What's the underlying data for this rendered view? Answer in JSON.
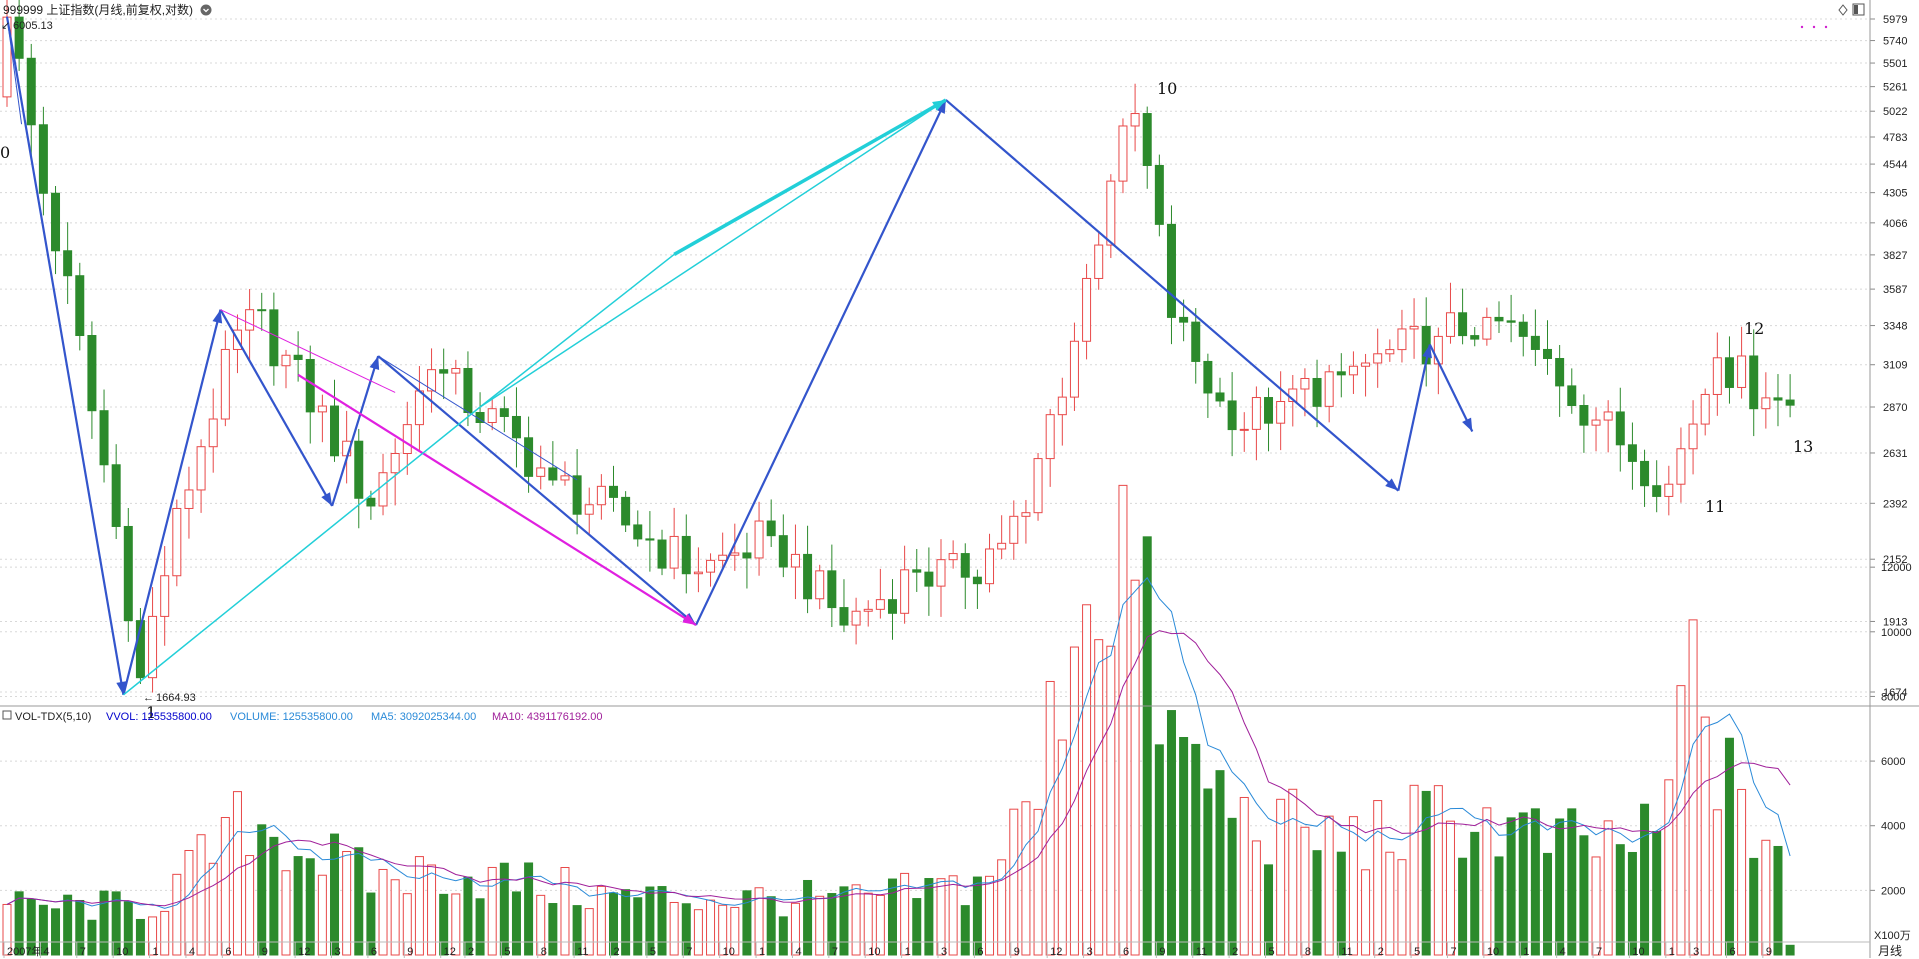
{
  "header": {
    "title": "999999 上证指数(月线,前复权,对数)",
    "max_label": "6005.13",
    "min_label": "1664.93"
  },
  "volume_header": {
    "indicator": "VOL-TDX(5,10)",
    "vvol": "VVOL: 125535800.00",
    "volume": "VOLUME: 125535800.00",
    "ma5": "MA5: 3092025344.00",
    "ma10": "MA10: 4391176192.00"
  },
  "period_label": "月线",
  "volume_unit": "X100万",
  "colors": {
    "up": "#e84848",
    "down": "#2c8a2c",
    "wave_blue": "#3355cc",
    "cyan": "#22cfd8",
    "magenta": "#e020e0",
    "ma5": "#2a8ad8",
    "ma10": "#a0209a",
    "vvol": "#0000cc",
    "volume": "#2a8ad8",
    "ma10_text": "#a0209a"
  },
  "chart_data": {
    "type": "candlestick",
    "price_axis": {
      "scale": "log",
      "ticks": [
        1674,
        1913,
        2152,
        2392,
        2631,
        2870,
        3109,
        3348,
        3587,
        3827,
        4066,
        4305,
        4544,
        4783,
        5022,
        5261,
        5501,
        5740,
        5979
      ]
    },
    "volume_axis": {
      "unit": "X100万",
      "ticks": [
        2000,
        4000,
        6000,
        8000,
        10000,
        12000
      ]
    },
    "x_labels": [
      {
        "month_index": 0,
        "label": "2007年"
      },
      {
        "month_index": 3,
        "label": "4"
      },
      {
        "month_index": 6,
        "label": "7"
      },
      {
        "month_index": 9,
        "label": "10"
      },
      {
        "month_index": 12,
        "label": "1"
      },
      {
        "month_index": 15,
        "label": "4"
      },
      {
        "month_index": 18,
        "label": "6"
      },
      {
        "month_index": 21,
        "label": "9"
      },
      {
        "month_index": 24,
        "label": "12"
      },
      {
        "month_index": 27,
        "label": "3"
      },
      {
        "month_index": 30,
        "label": "6"
      },
      {
        "month_index": 33,
        "label": "9"
      },
      {
        "month_index": 36,
        "label": "12"
      },
      {
        "month_index": 38,
        "label": "2"
      },
      {
        "month_index": 41,
        "label": "5"
      },
      {
        "month_index": 44,
        "label": "8"
      },
      {
        "month_index": 47,
        "label": "11"
      },
      {
        "month_index": 50,
        "label": "2"
      },
      {
        "month_index": 53,
        "label": "5"
      },
      {
        "month_index": 56,
        "label": "7"
      },
      {
        "month_index": 59,
        "label": "10"
      },
      {
        "month_index": 62,
        "label": "1"
      },
      {
        "month_index": 65,
        "label": "4"
      },
      {
        "month_index": 68,
        "label": "7"
      },
      {
        "month_index": 71,
        "label": "10"
      },
      {
        "month_index": 74,
        "label": "1"
      },
      {
        "month_index": 77,
        "label": "3"
      },
      {
        "month_index": 80,
        "label": "6"
      },
      {
        "month_index": 83,
        "label": "9"
      },
      {
        "month_index": 86,
        "label": "12"
      },
      {
        "month_index": 89,
        "label": "3"
      },
      {
        "month_index": 92,
        "label": "6"
      },
      {
        "month_index": 95,
        "label": "9"
      },
      {
        "month_index": 98,
        "label": "11"
      },
      {
        "month_index": 101,
        "label": "2"
      },
      {
        "month_index": 104,
        "label": "5"
      },
      {
        "month_index": 107,
        "label": "8"
      },
      {
        "month_index": 110,
        "label": "11"
      },
      {
        "month_index": 113,
        "label": "2"
      },
      {
        "month_index": 116,
        "label": "5"
      },
      {
        "month_index": 119,
        "label": "7"
      },
      {
        "month_index": 122,
        "label": "10"
      },
      {
        "month_index": 125,
        "label": "1"
      },
      {
        "month_index": 128,
        "label": "4"
      },
      {
        "month_index": 131,
        "label": "7"
      },
      {
        "month_index": 134,
        "label": "10"
      },
      {
        "month_index": 137,
        "label": "1"
      },
      {
        "month_index": 139,
        "label": "3"
      },
      {
        "month_index": 142,
        "label": "6"
      },
      {
        "month_index": 145,
        "label": "9"
      }
    ],
    "anchors": [
      {
        "i": 0,
        "c": 6000
      },
      {
        "i": 3,
        "c": 4300
      },
      {
        "i": 7,
        "c": 2850
      },
      {
        "i": 11,
        "c": 1720
      },
      {
        "i": 20,
        "c": 3450
      },
      {
        "i": 30,
        "c": 2380
      },
      {
        "i": 35,
        "c": 3080
      },
      {
        "i": 45,
        "c": 2500
      },
      {
        "i": 57,
        "c": 2100
      },
      {
        "i": 63,
        "c": 2250
      },
      {
        "i": 69,
        "c": 1900
      },
      {
        "i": 75,
        "c": 2100
      },
      {
        "i": 79,
        "c": 2080
      },
      {
        "i": 84,
        "c": 2350
      },
      {
        "i": 88,
        "c": 3250
      },
      {
        "i": 91,
        "c": 4400
      },
      {
        "i": 93,
        "c": 5000
      },
      {
        "i": 96,
        "c": 3400
      },
      {
        "i": 101,
        "c": 2750
      },
      {
        "i": 105,
        "c": 2900
      },
      {
        "i": 110,
        "c": 3050
      },
      {
        "i": 118,
        "c": 3280
      },
      {
        "i": 122,
        "c": 3400
      },
      {
        "i": 126,
        "c": 3200
      },
      {
        "i": 131,
        "c": 2800
      },
      {
        "i": 137,
        "c": 2480
      },
      {
        "i": 141,
        "c": 3150
      },
      {
        "i": 145,
        "c": 2920
      },
      {
        "i": 147,
        "c": 2880
      }
    ],
    "volume_anchors": [
      {
        "i": 0,
        "v": 1500
      },
      {
        "i": 12,
        "v": 1500
      },
      {
        "i": 20,
        "v": 4200
      },
      {
        "i": 30,
        "v": 2300
      },
      {
        "i": 36,
        "v": 2600
      },
      {
        "i": 50,
        "v": 1800
      },
      {
        "i": 70,
        "v": 1700
      },
      {
        "i": 80,
        "v": 2200
      },
      {
        "i": 85,
        "v": 4800
      },
      {
        "i": 88,
        "v": 11000
      },
      {
        "i": 92,
        "v": 13000
      },
      {
        "i": 96,
        "v": 6500
      },
      {
        "i": 102,
        "v": 4200
      },
      {
        "i": 110,
        "v": 3500
      },
      {
        "i": 120,
        "v": 4300
      },
      {
        "i": 128,
        "v": 3400
      },
      {
        "i": 136,
        "v": 3500
      },
      {
        "i": 139,
        "v": 8800
      },
      {
        "i": 140,
        "v": 7500
      },
      {
        "i": 143,
        "v": 4000
      },
      {
        "i": 146,
        "v": 3600
      },
      {
        "i": 147,
        "v": 300
      }
    ],
    "wave_points": [
      {
        "label": "0",
        "i": 0,
        "price": 6005
      },
      {
        "label": "1",
        "i": 11,
        "price": 1665
      },
      {
        "label": "10",
        "i": 93,
        "price": 5130
      },
      {
        "label": "11",
        "i": 137,
        "price": 2450
      },
      {
        "label": "12",
        "i": 140,
        "price": 3230
      },
      {
        "label": "13",
        "i": 144,
        "price": 2740
      }
    ]
  }
}
